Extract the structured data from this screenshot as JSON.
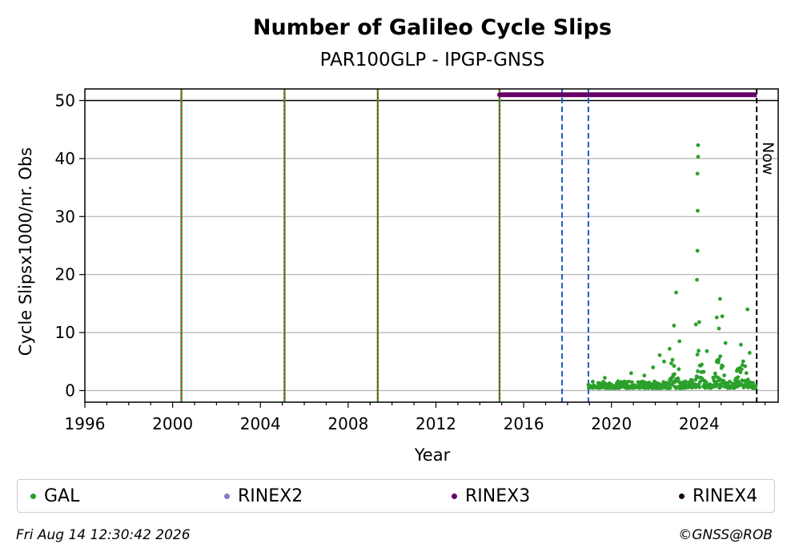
{
  "chart_data": {
    "type": "scatter",
    "title": "Number of Galileo Cycle Slips",
    "subtitle": "PAR100GLP - IPGP-GNSS",
    "xlabel": "Year",
    "ylabel": "Cycle Slipsx1000/nr. Obs",
    "xlim": [
      1996,
      2027.6
    ],
    "ylim": [
      -2,
      52
    ],
    "xticks": [
      1996,
      2000,
      2004,
      2008,
      2012,
      2016,
      2020,
      2024
    ],
    "yticks": [
      0,
      10,
      20,
      30,
      40,
      50
    ],
    "grid": "horizontal",
    "now_label": "Now",
    "now_x": 2026.62,
    "vlines_equipment": [
      2000.4,
      2005.1,
      2009.35,
      2014.9
    ],
    "vlines_blue": [
      2017.75,
      2018.95
    ],
    "rinex3_span": {
      "y": 51,
      "x_start": 2014.9,
      "x_end": 2026.62
    },
    "colors": {
      "GAL": "#2ca02c",
      "RINEX2": "#8080c0",
      "RINEX3": "#660066",
      "RINEX4": "#1a001a",
      "equipment_green": "#2ca02c",
      "equipment_red": "#ff0000",
      "blue_line": "#1f5fbf"
    },
    "series": [
      {
        "name": "GAL",
        "highlights": [
          [
            2023.95,
            42.3
          ],
          [
            2023.95,
            40.3
          ],
          [
            2023.92,
            37.4
          ],
          [
            2023.93,
            31.0
          ],
          [
            2023.92,
            24.1
          ],
          [
            2023.9,
            19.1
          ],
          [
            2022.95,
            16.9
          ],
          [
            2024.95,
            15.8
          ],
          [
            2025.05,
            12.8
          ],
          [
            2024.8,
            12.6
          ],
          [
            2024.0,
            11.8
          ],
          [
            2023.85,
            11.4
          ],
          [
            2022.85,
            11.2
          ],
          [
            2024.9,
            10.7
          ],
          [
            2026.2,
            14.0
          ],
          [
            2025.9,
            7.9
          ],
          [
            2022.2,
            6.1
          ],
          [
            2022.65,
            7.2
          ],
          [
            2022.4,
            5.0
          ],
          [
            2021.9,
            4.0
          ],
          [
            2019.7,
            2.2
          ],
          [
            2020.9,
            3.0
          ],
          [
            2026.3,
            6.5
          ],
          [
            2025.2,
            8.2
          ],
          [
            2024.35,
            6.8
          ],
          [
            2023.1,
            8.5
          ],
          [
            2021.5,
            2.6
          ],
          [
            2020.3,
            1.6
          ]
        ],
        "dense_range": {
          "x_start": 2018.95,
          "x_end": 2026.6,
          "baseline": 0.4
        }
      }
    ],
    "legend": [
      {
        "name": "GAL",
        "color": "#2ca02c"
      },
      {
        "name": "RINEX2",
        "color": "#8080c0"
      },
      {
        "name": "RINEX3",
        "color": "#660066"
      },
      {
        "name": "RINEX4",
        "color": "#1a001a"
      }
    ]
  },
  "footer": {
    "timestamp": "Fri Aug 14 12:30:42 2026",
    "copyright": "©GNSS@ROB"
  }
}
